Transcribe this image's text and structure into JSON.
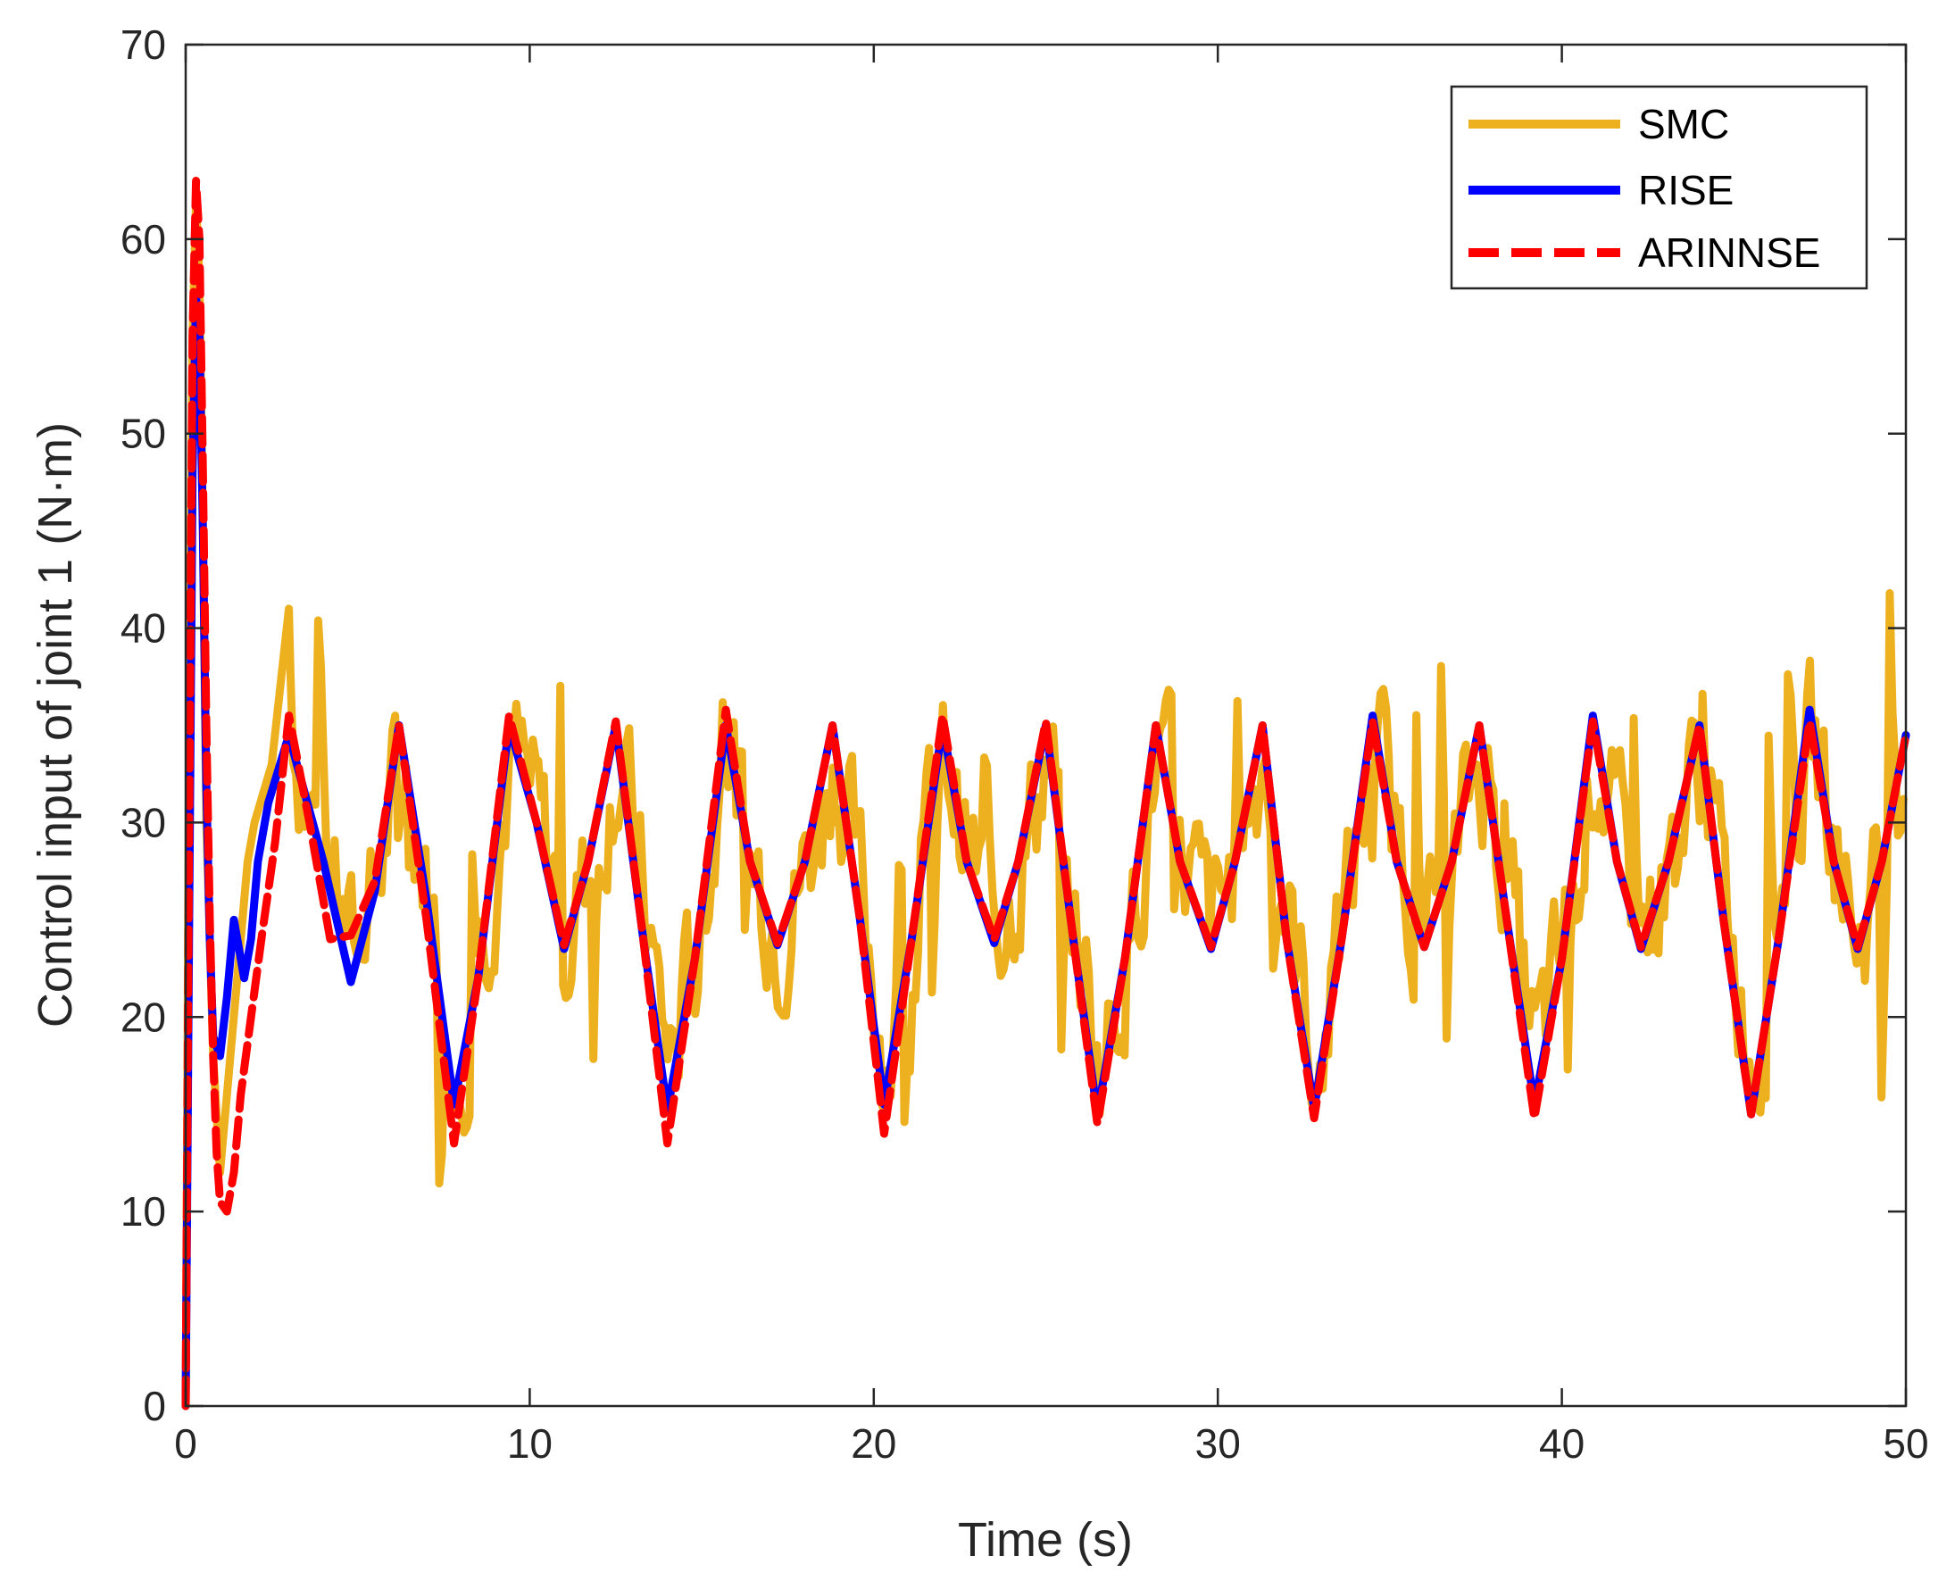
{
  "chart_data": {
    "type": "line",
    "title": "",
    "xlabel": "Time (s)",
    "ylabel": "Control input of joint 1 (N·m)",
    "xlim": [
      0,
      50
    ],
    "ylim": [
      0,
      70
    ],
    "xticks": [
      0,
      10,
      20,
      30,
      40,
      50
    ],
    "yticks": [
      0,
      10,
      20,
      30,
      40,
      50,
      60,
      70
    ],
    "xtick_labels": [
      "0",
      "10",
      "20",
      "30",
      "40",
      "50"
    ],
    "ytick_labels": [
      "0",
      "10",
      "20",
      "30",
      "40",
      "50",
      "60",
      "70"
    ],
    "grid": false,
    "legend_position": "top-right",
    "series": [
      {
        "name": "SMC",
        "color": "#EDB120",
        "style": "solid",
        "description": "Noisy oscillation around ~29 with excursions between ~8 and ~42",
        "x": [
          0,
          0.1,
          0.2,
          0.3,
          0.4,
          0.5,
          0.6,
          0.8,
          1.0,
          1.2,
          1.5,
          1.8,
          2.0,
          2.5,
          3.0
        ],
        "y": [
          0,
          35,
          55,
          62,
          58,
          45,
          30,
          18,
          12,
          16,
          22,
          28,
          30,
          33,
          41
        ]
      },
      {
        "name": "RISE",
        "color": "#0000FF",
        "style": "solid",
        "x": [
          0,
          0.1,
          0.2,
          0.3,
          0.4,
          0.5,
          0.6,
          0.7,
          0.8,
          1.0,
          1.2,
          1.4,
          1.7,
          1.9,
          2.1,
          2.4,
          3.0,
          4.0,
          4.8,
          5.5,
          6.2,
          7.0,
          7.8,
          8.5,
          9.4,
          10.2,
          11.0,
          11.7,
          12.5,
          13.3,
          14.0,
          14.8,
          15.7,
          16.4,
          17.2,
          18.0,
          18.8,
          19.6,
          20.3,
          21.1,
          22.0,
          22.7,
          23.5,
          24.2,
          25.0,
          25.8,
          26.5,
          27.3,
          28.2,
          28.9,
          29.8,
          30.5,
          31.3,
          32.0,
          32.8,
          33.6,
          34.5,
          35.2,
          36.0,
          36.8,
          37.6,
          38.4,
          39.2,
          40.0,
          40.9,
          41.6,
          42.3,
          43.1,
          44.0,
          44.7,
          45.5,
          46.3,
          47.2,
          47.9,
          48.6,
          49.3,
          50.0
        ],
        "y": [
          0,
          25,
          48,
          57,
          55,
          45,
          32,
          24,
          19,
          18,
          21,
          25,
          22,
          24,
          28,
          31,
          34.5,
          28,
          21.8,
          26.5,
          35,
          26,
          15.5,
          22,
          35,
          30,
          23.5,
          28,
          35,
          24,
          15.2,
          23,
          35,
          28,
          23.7,
          28,
          35,
          25,
          15.5,
          24,
          35,
          28,
          23.8,
          28,
          35,
          24,
          15,
          23,
          35,
          28,
          23.5,
          28,
          35,
          24,
          15.3,
          24,
          35.5,
          28,
          23.6,
          28,
          35,
          25,
          15.5,
          23,
          35.5,
          28,
          23.5,
          28,
          35,
          25,
          15,
          24,
          35.8,
          28,
          23.5,
          28,
          34.5
        ]
      },
      {
        "name": "ARINNSE",
        "color": "#FF0000",
        "style": "dashed",
        "x": [
          0,
          0.1,
          0.2,
          0.3,
          0.4,
          0.5,
          0.6,
          0.7,
          0.8,
          0.9,
          1.0,
          1.2,
          1.4,
          1.6,
          1.9,
          2.2,
          2.6,
          3.0,
          3.6,
          4.2,
          4.8,
          5.5,
          6.2,
          7.0,
          7.8,
          8.5,
          9.4,
          10.2,
          11.0,
          11.7,
          12.5,
          13.3,
          14.0,
          14.8,
          15.7,
          16.4,
          17.2,
          18.0,
          18.8,
          19.6,
          20.3,
          21.1,
          22.0,
          22.7,
          23.5,
          24.2,
          25.0,
          25.8,
          26.5,
          27.3,
          28.2,
          28.9,
          29.8,
          30.5,
          31.3,
          32.0,
          32.8,
          33.6,
          34.5,
          35.2,
          36.0,
          36.8,
          37.6,
          38.4,
          39.2,
          40.0,
          40.9,
          41.6,
          42.3,
          43.1,
          44.0,
          44.7,
          45.5,
          46.3,
          47.2,
          47.9,
          48.6,
          49.3,
          50.0
        ],
        "y": [
          0,
          30,
          55,
          63,
          60,
          48,
          35,
          25,
          18,
          13,
          10.5,
          10,
          12,
          16,
          20,
          24,
          29,
          35.5,
          30,
          24,
          24.2,
          27,
          35,
          25,
          13.5,
          22,
          35.5,
          30,
          23.7,
          28,
          35.2,
          24,
          13.5,
          23,
          35.8,
          28,
          23.8,
          28,
          35,
          25,
          14,
          24,
          35.5,
          28,
          24,
          28,
          35.2,
          24,
          14.5,
          23,
          35,
          28,
          23.6,
          28,
          35,
          24,
          14.8,
          24,
          35.2,
          28,
          23.6,
          28,
          35,
          25,
          14.8,
          23,
          35.2,
          28,
          23.6,
          28,
          35,
          25,
          15,
          24,
          35.2,
          28,
          23.6,
          28,
          34.5
        ]
      }
    ]
  }
}
